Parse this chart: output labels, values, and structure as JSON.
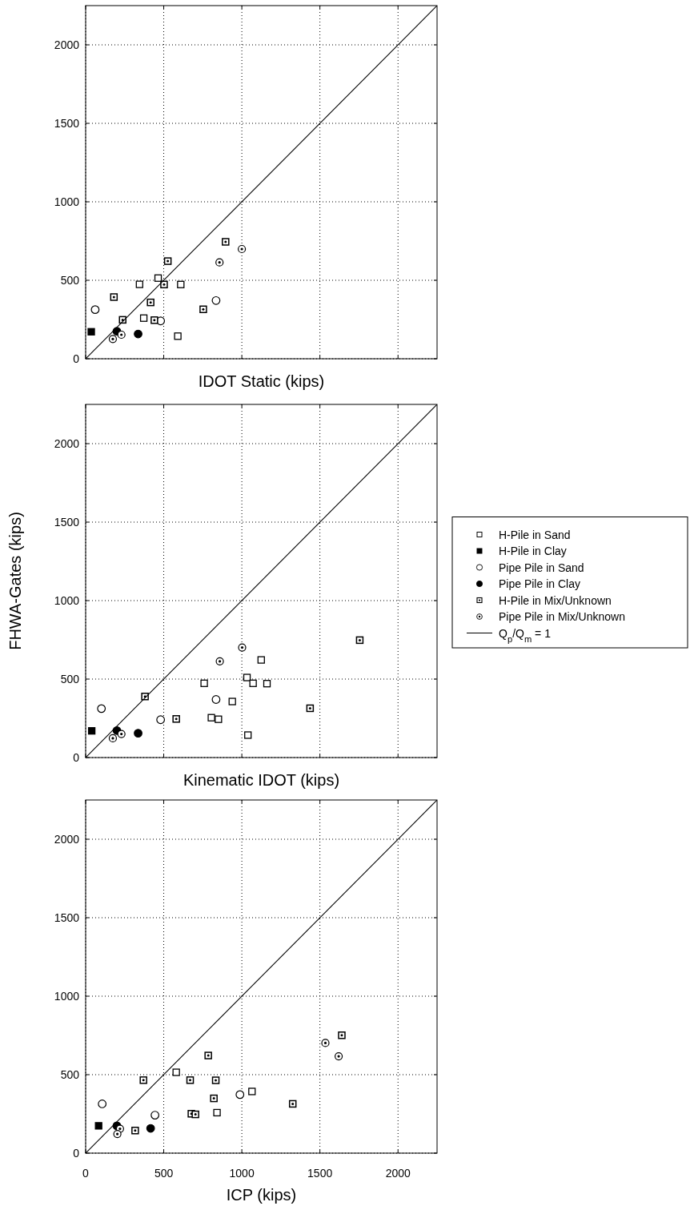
{
  "chart_data": [
    {
      "type": "scatter",
      "xlabel": "IDOT Static (kips)",
      "xlim": [
        0,
        2250
      ],
      "ylim": [
        0,
        2250
      ],
      "xticks": [
        0,
        500,
        1000,
        1500,
        2000
      ],
      "yticks": [
        0,
        500,
        1000,
        1500,
        2000
      ],
      "tick_labels": "y",
      "grid": true,
      "legend": false,
      "series": [
        {
          "color": "#000000",
          "marker": "square_open",
          "x": [
            345,
            464,
            609,
            372,
            590
          ],
          "values": [
            474,
            514,
            473,
            259,
            144
          ]
        },
        {
          "color": "#000000",
          "marker": "square",
          "x": [
            36
          ],
          "values": [
            172
          ]
        },
        {
          "color": "#000000",
          "marker": "circle_open",
          "x": [
            61,
            835,
            480
          ],
          "values": [
            313,
            371,
            241
          ]
        },
        {
          "color": "#000000",
          "marker": "circle",
          "x": [
            200,
            336
          ],
          "values": [
            175,
            158
          ]
        },
        {
          "color": "#000000",
          "marker": "square_dot",
          "x": [
            896,
            526,
            502,
            181,
            416,
            237,
            440,
            753
          ],
          "values": [
            745,
            622,
            473,
            393,
            359,
            248,
            246,
            315
          ]
        },
        {
          "color": "#000000",
          "marker": "circle_dot",
          "x": [
            1000,
            857,
            229,
            174
          ],
          "values": [
            699,
            614,
            153,
            126
          ]
        },
        {
          "type": "line",
          "color": "#000000",
          "x": [
            0,
            2250
          ],
          "values": [
            0,
            2250
          ]
        }
      ]
    },
    {
      "type": "scatter",
      "xlabel": "Kinematic IDOT (kips)",
      "ylabel": "FHWA-Gates (kips)",
      "xlim": [
        0,
        2250
      ],
      "ylim": [
        0,
        2250
      ],
      "xticks": [
        0,
        500,
        1000,
        1500,
        2000
      ],
      "yticks": [
        0,
        500,
        1000,
        1500,
        2000
      ],
      "tick_labels": "y",
      "grid": true,
      "legend": "right",
      "series": [
        {
          "name": "H-Pile in Sand",
          "color": "#000000",
          "marker": "square_open",
          "x": [
            1124,
            1033,
            1072,
            1161,
            939,
            1039,
            759,
            805,
            850
          ],
          "values": [
            622,
            510,
            473,
            471,
            357,
            143,
            473,
            254,
            244
          ]
        },
        {
          "name": "H-Pile in Clay",
          "color": "#000000",
          "marker": "square",
          "x": [
            39
          ],
          "values": [
            170
          ]
        },
        {
          "name": "Pipe Pile in Sand",
          "color": "#000000",
          "marker": "circle_open",
          "x": [
            101,
            480,
            835
          ],
          "values": [
            312,
            241,
            370
          ]
        },
        {
          "name": "Pipe Pile in Clay",
          "color": "#000000",
          "marker": "circle",
          "x": [
            200,
            336
          ],
          "values": [
            172,
            155
          ]
        },
        {
          "name": "H-Pile in Mix/Unknown",
          "color": "#000000",
          "marker": "square_dot",
          "x": [
            1755,
            1437,
            380,
            580
          ],
          "values": [
            748,
            314,
            389,
            246
          ]
        },
        {
          "name": "Pipe Pile in Mix/Unknown",
          "color": "#000000",
          "marker": "circle_dot",
          "x": [
            1002,
            859,
            229,
            174
          ],
          "values": [
            701,
            613,
            150,
            123
          ]
        },
        {
          "name": "Q$_{p}$/Q$_{m}$ = 1",
          "type": "line",
          "color": "#000000",
          "x": [
            0,
            2250
          ],
          "values": [
            0,
            2250
          ]
        }
      ]
    },
    {
      "type": "scatter",
      "xlabel": "ICP (kips)",
      "xlim": [
        0,
        2250
      ],
      "ylim": [
        0,
        2250
      ],
      "xticks": [
        0,
        500,
        1000,
        1500,
        2000
      ],
      "yticks": [
        0,
        500,
        1000,
        1500,
        2000
      ],
      "grid": true,
      "legend": false,
      "series": [
        {
          "color": "#000000",
          "marker": "square_open",
          "x": [
            580,
            1065,
            841
          ],
          "values": [
            515,
            393,
            258
          ]
        },
        {
          "color": "#000000",
          "marker": "square",
          "x": [
            83
          ],
          "values": [
            174
          ]
        },
        {
          "color": "#000000",
          "marker": "circle_open",
          "x": [
            106,
            988,
            444
          ],
          "values": [
            314,
            373,
            242
          ]
        },
        {
          "color": "#000000",
          "marker": "circle",
          "x": [
            200,
            416
          ],
          "values": [
            174,
            158
          ]
        },
        {
          "color": "#000000",
          "marker": "square_dot",
          "x": [
            785,
            370,
            669,
            833,
            821,
            677,
            703,
            317,
            1640,
            1326
          ],
          "values": [
            622,
            465,
            465,
            464,
            349,
            251,
            247,
            144,
            751,
            314
          ]
        },
        {
          "color": "#000000",
          "marker": "circle_dot",
          "x": [
            1535,
            1620,
            220,
            203
          ],
          "values": [
            702,
            617,
            155,
            122
          ]
        },
        {
          "type": "line",
          "color": "#000000",
          "x": [
            0,
            2250
          ],
          "values": [
            0,
            2250
          ]
        }
      ]
    }
  ]
}
